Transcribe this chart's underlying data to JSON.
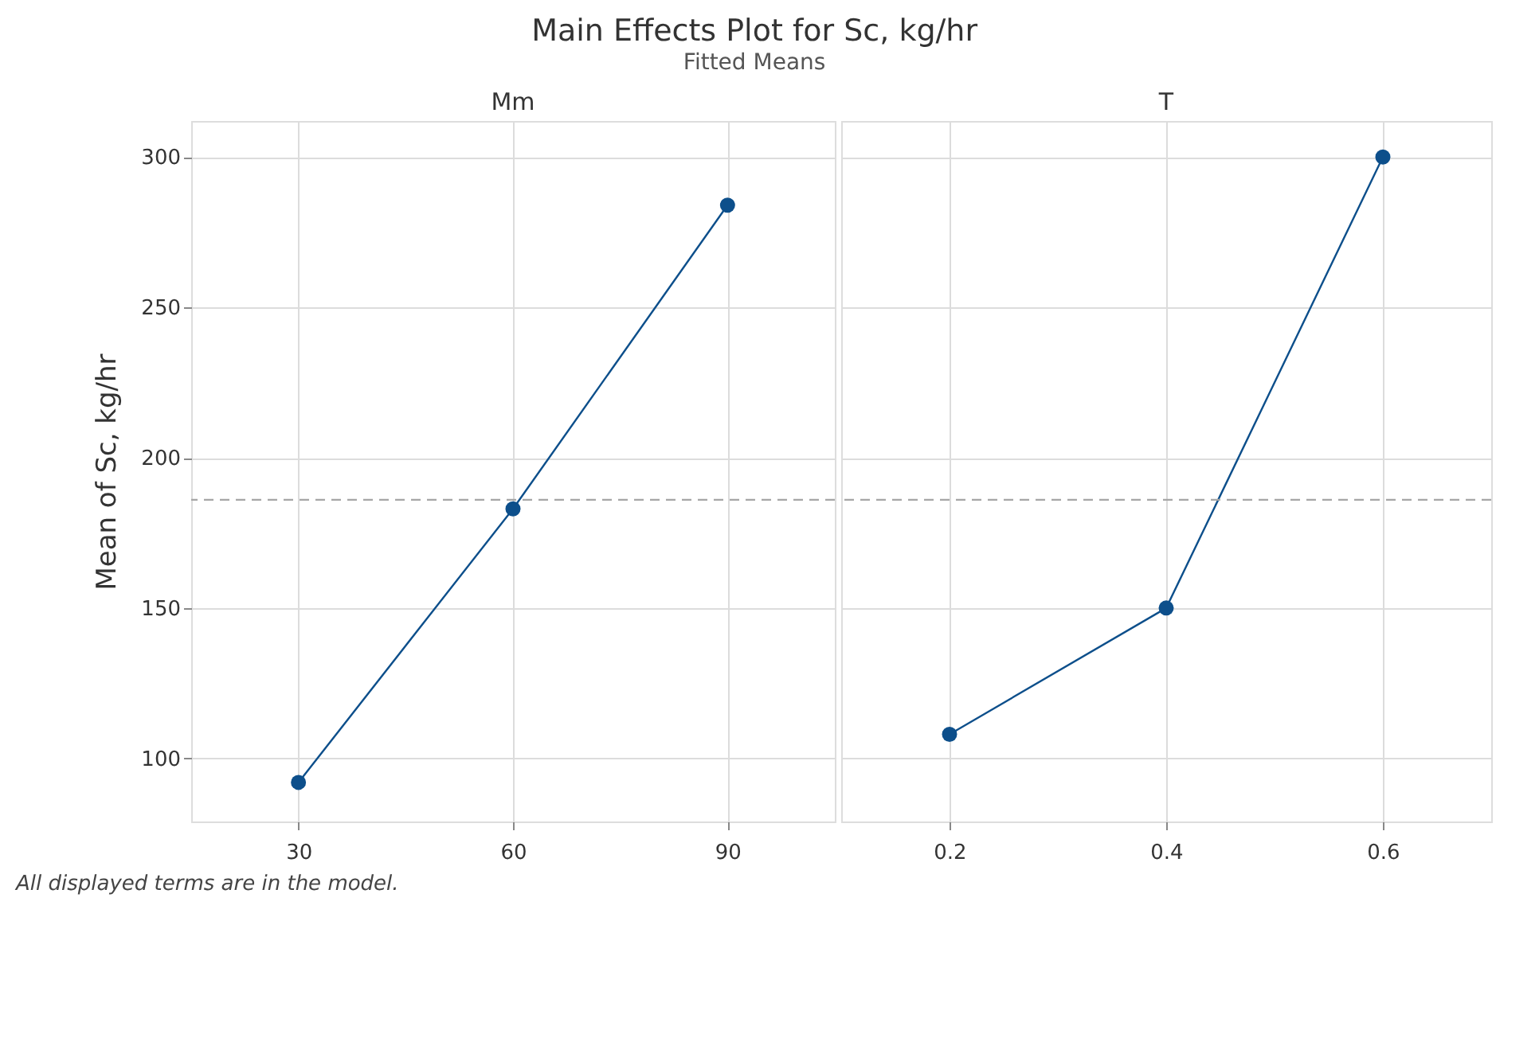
{
  "chart_data": [
    {
      "type": "line",
      "title": "Main Effects Plot for Sc, kg/hr",
      "subtitle": "Fitted Means",
      "xlabel": "Mm",
      "ylabel": "Mean of Sc, kg/hr",
      "x": [
        30,
        60,
        90
      ],
      "series": [
        {
          "color": "#0d4f8b",
          "values": [
            92,
            183,
            284
          ]
        }
      ],
      "xlim": [
        15,
        105
      ],
      "xticks": [
        30,
        60,
        90
      ],
      "ylim": [
        79,
        312
      ],
      "yticks": [
        100,
        150,
        200,
        250,
        300
      ],
      "grid": true,
      "marker": "circle",
      "line_style": "solid",
      "ref_lines": [
        {
          "axis": "y",
          "value": 186,
          "color": "#a6a6a6",
          "line_style": "dashed"
        }
      ],
      "annotations": [
        "All displayed terms are in the model."
      ]
    },
    {
      "type": "line",
      "xlabel": "T",
      "x": [
        0.2,
        0.4,
        0.6
      ],
      "series": [
        {
          "color": "#0d4f8b",
          "values": [
            108,
            150,
            300
          ]
        }
      ],
      "xlim": [
        0.1,
        0.7
      ],
      "xticks": [
        0.2,
        0.4,
        0.6
      ],
      "ylim": [
        79,
        312
      ],
      "yticks": [
        100,
        150,
        200,
        250,
        300
      ],
      "grid": true,
      "marker": "circle",
      "line_style": "solid",
      "tick_labels": "x",
      "ref_lines": [
        {
          "axis": "y",
          "value": 186,
          "color": "#a6a6a6",
          "line_style": "dashed"
        }
      ]
    }
  ]
}
